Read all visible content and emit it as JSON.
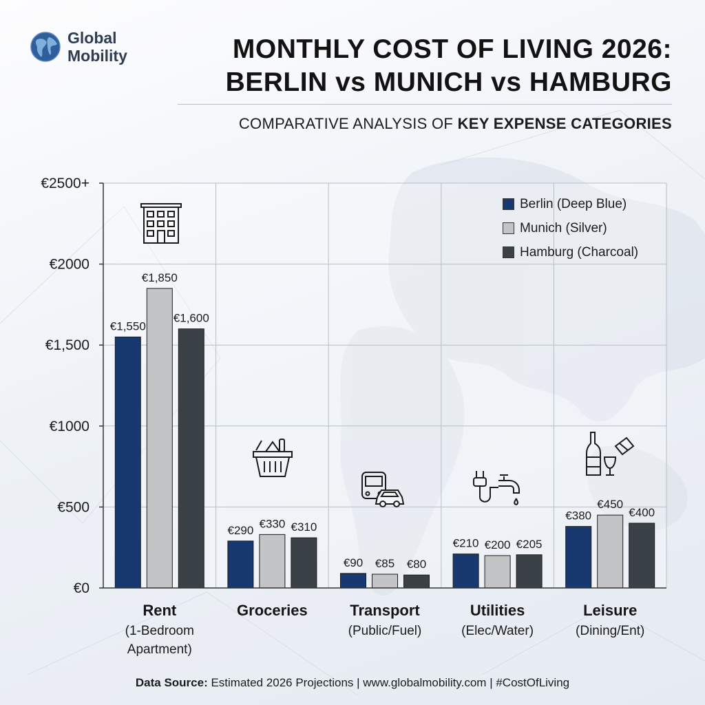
{
  "brand": {
    "line1": "Global",
    "line2": "Mobility",
    "icon": "globe-icon"
  },
  "header": {
    "title_line1": "MONTHLY COST OF LIVING 2026:",
    "title_line2": "BERLIN vs MUNICH vs HAMBURG",
    "subtitle_prefix": "COMPARATIVE ANALYSIS OF ",
    "subtitle_bold": "KEY EXPENSE CATEGORIES"
  },
  "footer": {
    "label": "Data Source:",
    "text": " Estimated 2026 Projections | www.globalmobility.com | #CostOfLiving"
  },
  "colors": {
    "berlin": "#17396f",
    "munich": "#c3c4c6",
    "hamburg": "#3a4248"
  },
  "chart_data": {
    "type": "bar",
    "title": "MONTHLY COST OF LIVING 2026: BERLIN vs MUNICH vs HAMBURG",
    "subtitle": "COMPARATIVE ANALYSIS OF KEY EXPENSE CATEGORIES",
    "ylim": [
      0,
      2500
    ],
    "yticks": [
      {
        "value": 0,
        "label": "€0"
      },
      {
        "value": 500,
        "label": "€500"
      },
      {
        "value": 1000,
        "label": "€1000"
      },
      {
        "value": 1500,
        "label": "€1,500"
      },
      {
        "value": 2000,
        "label": "€2000"
      },
      {
        "value": 2500,
        "label": "€2500+"
      }
    ],
    "grid": true,
    "legend_position": "top-right",
    "categories": [
      {
        "name": "Rent",
        "sub": [
          "(1-Bedroom",
          "Apartment)"
        ],
        "icon": "building-icon"
      },
      {
        "name": "Groceries",
        "sub": [],
        "icon": "grocery-basket-icon"
      },
      {
        "name": "Transport",
        "sub": [
          "(Public/Fuel)"
        ],
        "icon": "bus-car-icon"
      },
      {
        "name": "Utilities",
        "sub": [
          "(Elec/Water)"
        ],
        "icon": "plug-faucet-icon"
      },
      {
        "name": "Leisure",
        "sub": [
          "(Dining/Ent)"
        ],
        "icon": "wine-ticket-icon"
      }
    ],
    "series": [
      {
        "name": "Berlin (Deep Blue)",
        "color": "#17396f",
        "values": [
          1550,
          290,
          90,
          210,
          380
        ],
        "labels": [
          "€1,550",
          "€290",
          "€90",
          "€210",
          "€380"
        ]
      },
      {
        "name": "Munich (Silver)",
        "color": "#c3c4c6",
        "values": [
          1850,
          330,
          85,
          200,
          450
        ],
        "labels": [
          "€1,850",
          "€330",
          "€85",
          "€200",
          "€450"
        ]
      },
      {
        "name": "Hamburg (Charcoal)",
        "color": "#3a4248",
        "values": [
          1600,
          310,
          80,
          205,
          400
        ],
        "labels": [
          "€1,600",
          "€310",
          "€80",
          "€205",
          "€400"
        ]
      }
    ]
  }
}
